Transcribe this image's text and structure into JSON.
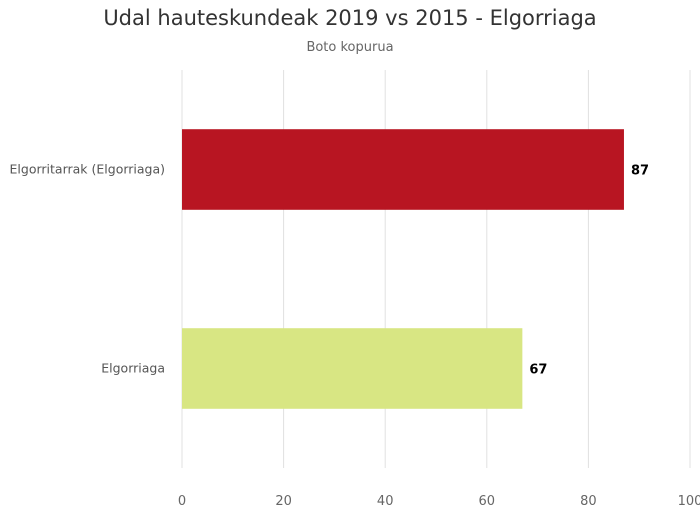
{
  "chart_data": {
    "type": "bar",
    "orientation": "horizontal",
    "title": "Udal hauteskundeak 2019 vs 2015 - Elgorriaga",
    "subtitle": "Boto kopurua",
    "categories": [
      "Elgorritarrak (Elgorriaga)",
      "Elgorriaga"
    ],
    "values": [
      87,
      67
    ],
    "colors": [
      "#b81522",
      "#d8e683"
    ],
    "xlim": [
      0,
      100
    ],
    "x_ticks": [
      0,
      20,
      40,
      60,
      80,
      100
    ],
    "grid": true,
    "data_labels": true
  }
}
